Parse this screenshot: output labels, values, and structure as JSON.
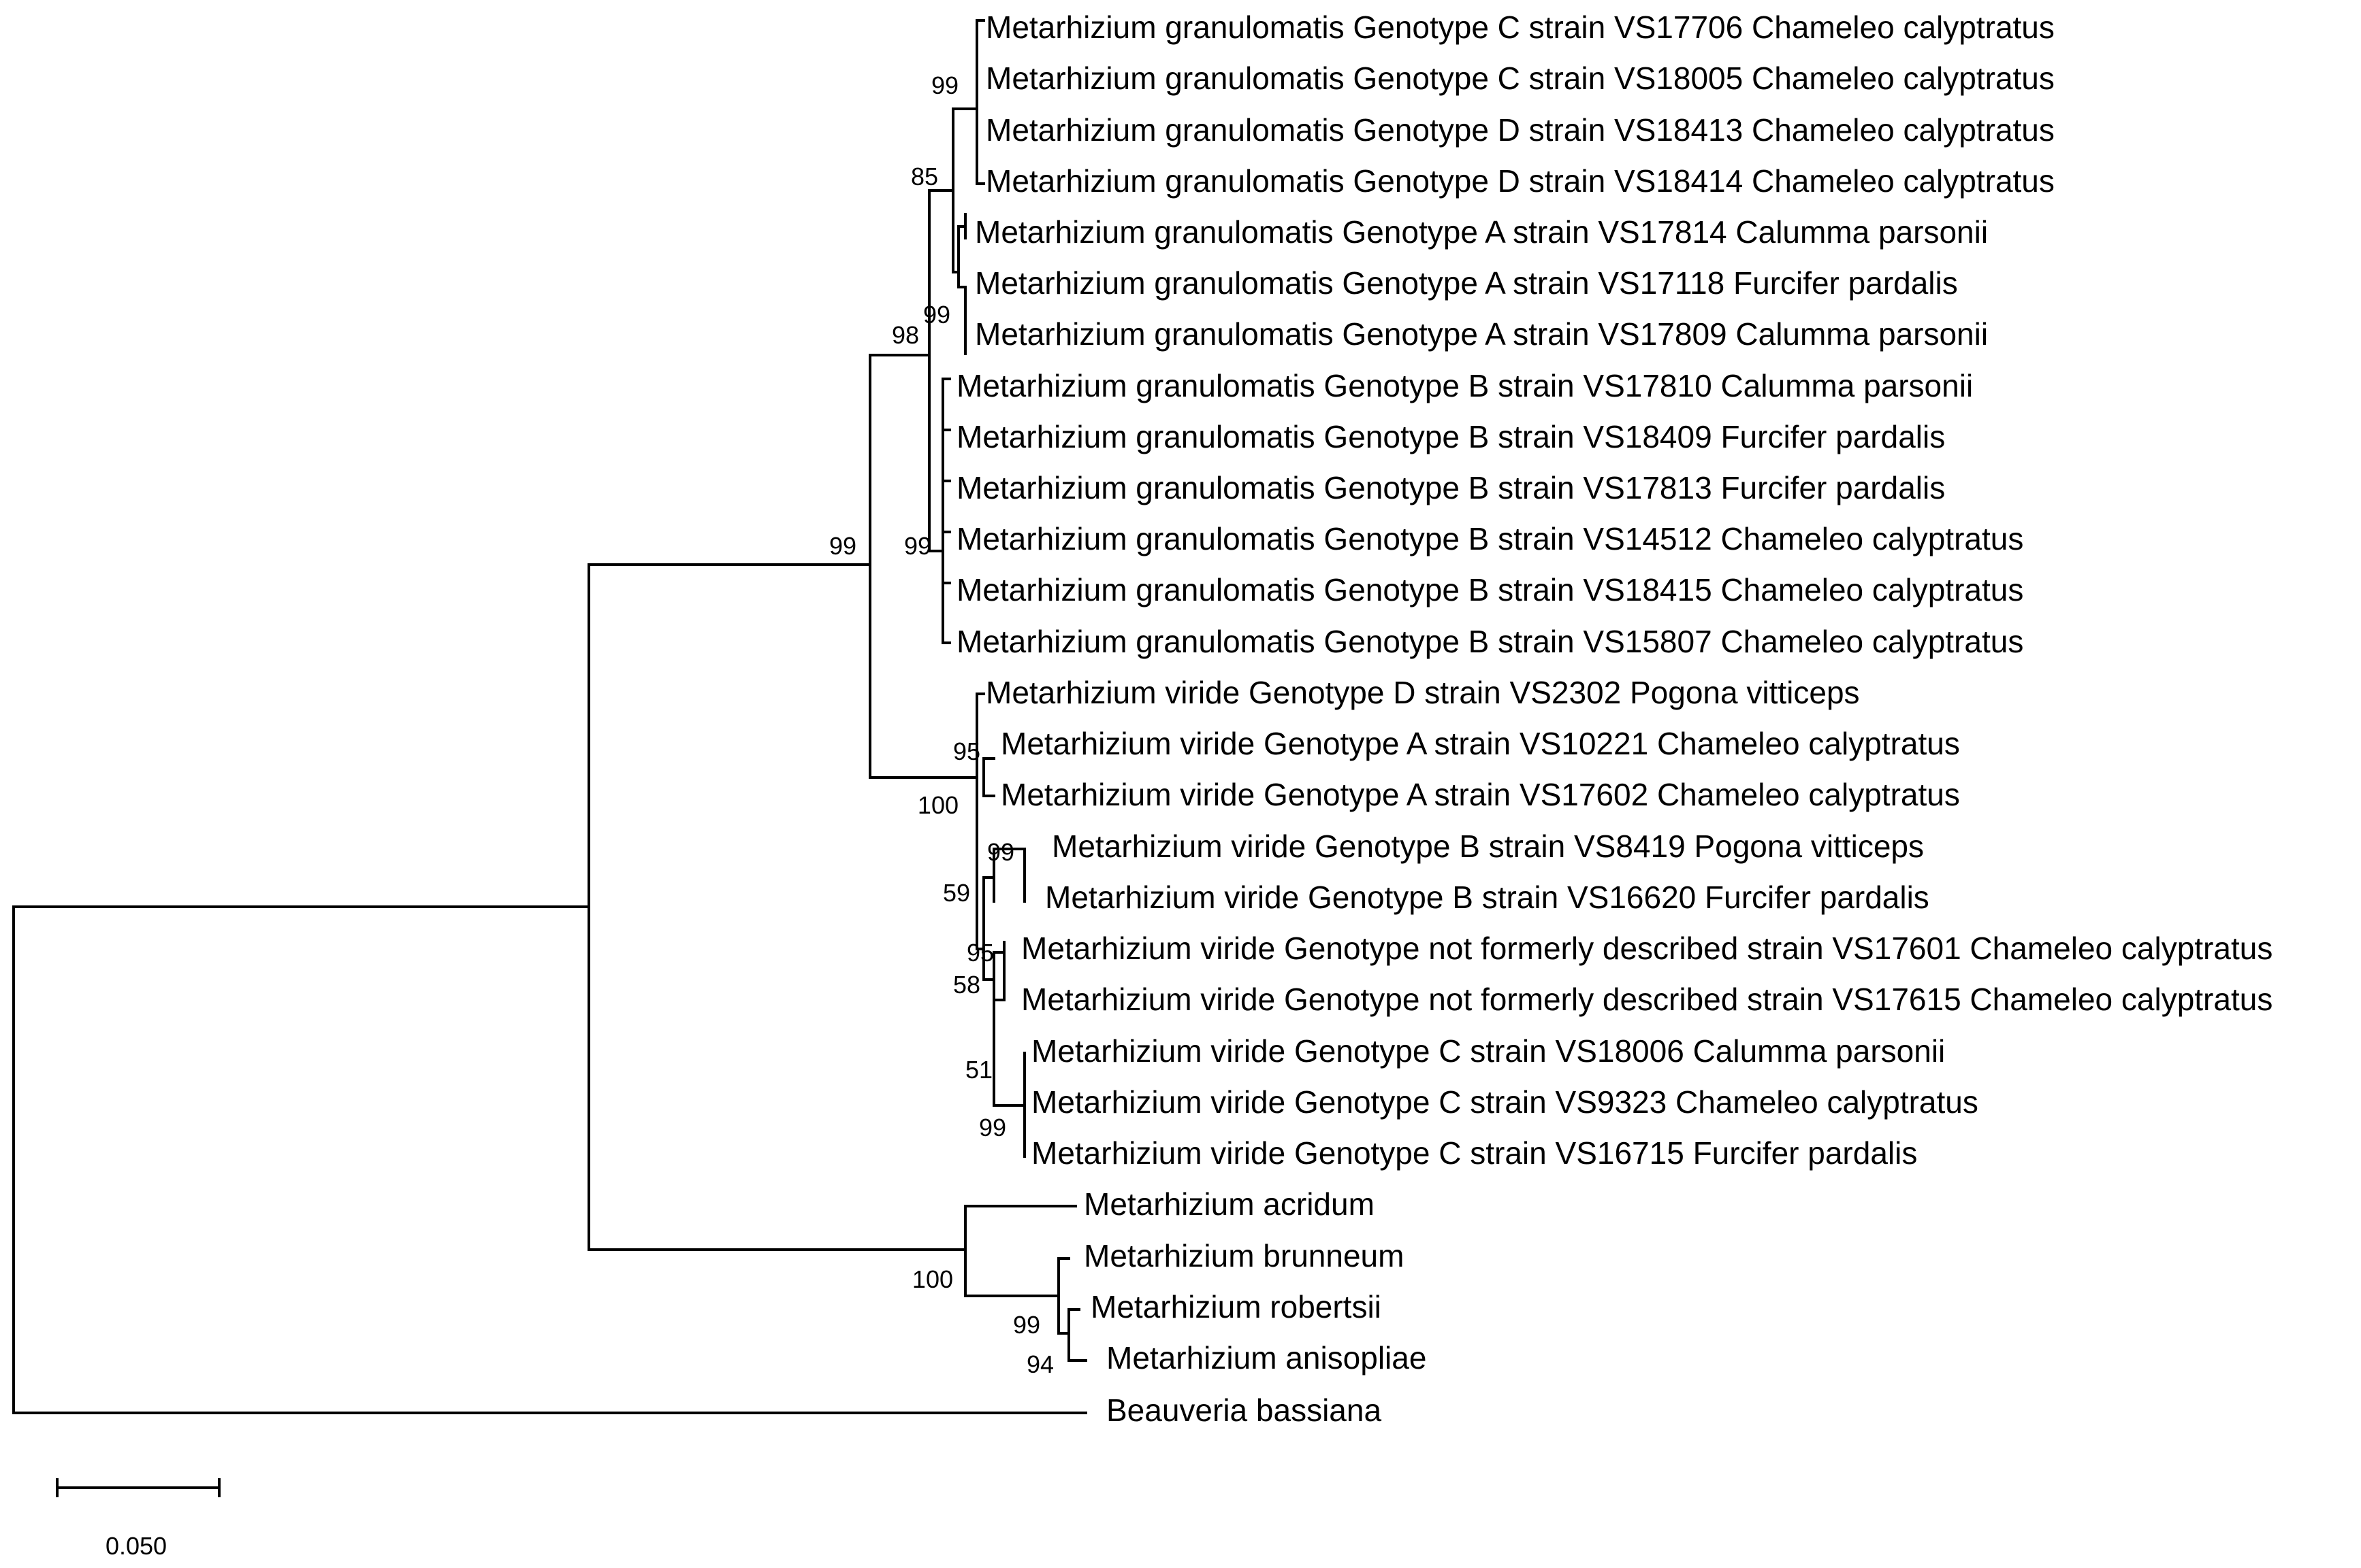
{
  "figure": {
    "type": "phylogenetic tree",
    "scale_bar_label": "0.050"
  },
  "taxa": [
    "Metarhizium granulomatis Genotype C strain VS17706 Chameleo calyptratus",
    "Metarhizium granulomatis Genotype C strain VS18005 Chameleo calyptratus",
    "Metarhizium granulomatis Genotype D strain VS18413 Chameleo calyptratus",
    "Metarhizium granulomatis Genotype D strain VS18414 Chameleo calyptratus",
    "Metarhizium granulomatis Genotype A strain VS17814 Calumma parsonii",
    "Metarhizium granulomatis Genotype A strain VS17118 Furcifer pardalis",
    "Metarhizium granulomatis Genotype A strain VS17809 Calumma parsonii",
    "Metarhizium granulomatis Genotype B strain VS17810 Calumma parsonii",
    "Metarhizium granulomatis Genotype B strain VS18409 Furcifer pardalis",
    "Metarhizium granulomatis Genotype B strain VS17813 Furcifer pardalis",
    "Metarhizium granulomatis Genotype B strain VS14512 Chameleo calyptratus",
    "Metarhizium granulomatis Genotype B strain VS18415 Chameleo calyptratus",
    "Metarhizium granulomatis Genotype B strain VS15807 Chameleo calyptratus",
    "Metarhizium viride Genotype D strain VS2302 Pogona vitticeps",
    "Metarhizium viride Genotype A strain VS10221 Chameleo calyptratus",
    "Metarhizium viride Genotype A strain VS17602 Chameleo calyptratus",
    "Metarhizium viride Genotype B strain VS8419 Pogona vitticeps",
    "Metarhizium viride Genotype B strain VS16620 Furcifer pardalis",
    "Metarhizium viride Genotype not formerly described strain VS17601 Chameleo calyptratus",
    "Metarhizium viride Genotype not formerly described strain VS17615 Chameleo calyptratus",
    "Metarhizium viride Genotype C strain VS18006 Calumma parsonii",
    "Metarhizium viride Genotype C strain VS9323 Chameleo calyptratus",
    "Metarhizium viride Genotype C strain VS16715 Furcifer pardalis",
    "Metarhizium acridum",
    "Metarhizium brunneum",
    "Metarhizium robertsii",
    "Metarhizium anisopliae",
    "Beauveria bassiana"
  ],
  "support_values": [
    "99",
    "85",
    "99",
    "98",
    "99",
    "99",
    "95",
    "100",
    "99",
    "59",
    "95",
    "58",
    "51",
    "99",
    "100",
    "99",
    "94"
  ]
}
